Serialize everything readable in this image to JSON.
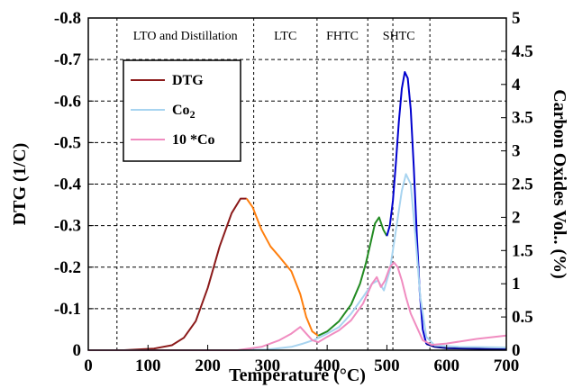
{
  "chart_data": {
    "type": "line",
    "xlabel": "Temperature (°C)",
    "ylabel": "DTG (1/C)",
    "y2label": "Carbon Oxides Vol.. (%)",
    "xlim": [
      0,
      700
    ],
    "ylim": [
      0,
      -0.8
    ],
    "y2lim": [
      0,
      5
    ],
    "x_ticks": [
      0,
      100,
      200,
      300,
      400,
      500,
      600,
      700
    ],
    "y_ticks": [
      "0",
      "-0.1",
      "-0.2",
      "-0.3",
      "-0.4",
      "-0.5",
      "-0.6",
      "-0.7",
      "-0.8"
    ],
    "y2_ticks": [
      "0",
      "0.5",
      "1",
      "1.5",
      "2",
      "2.5",
      "3",
      "3.5",
      "4",
      "4.5",
      "5"
    ],
    "grid": "horizontal dashed",
    "legend_position": "top-left",
    "legend": [
      {
        "label": "DTG",
        "sub": "",
        "color": "#8b1a1a"
      },
      {
        "label": "Co",
        "sub": "2",
        "color": "#a8d4f0"
      },
      {
        "label": "10 *Co",
        "sub": "",
        "color": "#f08cc0"
      }
    ],
    "regions": [
      {
        "label": "LTO and Distillation",
        "x_start": 48,
        "x_end": 277
      },
      {
        "label": "LTC",
        "x_start": 277,
        "x_end": 383
      },
      {
        "label": "FHTC",
        "x_start": 383,
        "x_end": 468
      },
      {
        "label": "SHTC",
        "x_start": 468,
        "x_end": 572
      }
    ],
    "region_lines_x": [
      48,
      277,
      383,
      468,
      510,
      572
    ],
    "series": [
      {
        "name": "DTG",
        "axis": "left",
        "segments": [
          {
            "color": "#8b1a1a",
            "x": [
              0,
              60,
              110,
              140,
              160,
              180,
              200,
              220,
              240,
              255,
              265
            ],
            "y": [
              0,
              0,
              -0.004,
              -0.012,
              -0.03,
              -0.07,
              -0.15,
              -0.25,
              -0.33,
              -0.365,
              -0.365
            ]
          },
          {
            "color": "#ff7f0e",
            "x": [
              265,
              275,
              290,
              305,
              320,
              340,
              355,
              365,
              375,
              385
            ],
            "y": [
              -0.365,
              -0.345,
              -0.29,
              -0.25,
              -0.225,
              -0.19,
              -0.135,
              -0.08,
              -0.045,
              -0.035
            ]
          },
          {
            "color": "#228b22",
            "x": [
              385,
              400,
              420,
              440,
              455,
              465,
              473,
              480,
              487,
              494,
              500
            ],
            "y": [
              -0.035,
              -0.045,
              -0.07,
              -0.11,
              -0.16,
              -0.21,
              -0.26,
              -0.305,
              -0.32,
              -0.29,
              -0.275
            ]
          },
          {
            "color": "#0000cd",
            "x": [
              500,
              505,
              510,
              515,
              520,
              525,
              530,
              535,
              540,
              545,
              550,
              555,
              560,
              566
            ],
            "y": [
              -0.275,
              -0.3,
              -0.36,
              -0.45,
              -0.55,
              -0.63,
              -0.67,
              -0.655,
              -0.58,
              -0.44,
              -0.28,
              -0.14,
              -0.05,
              -0.015
            ]
          },
          {
            "color": "#00008b",
            "x": [
              566,
              580,
              600,
              700
            ],
            "y": [
              -0.015,
              -0.008,
              -0.005,
              -0.002
            ]
          }
        ]
      },
      {
        "name": "Co2",
        "axis": "right",
        "color": "#a8d4f0",
        "x": [
          0,
          250,
          300,
          340,
          360,
          380,
          400,
          420,
          440,
          460,
          475,
          485,
          495,
          505,
          515,
          525,
          532,
          540,
          548,
          556,
          566,
          580,
          620,
          700
        ],
        "y": [
          0,
          0,
          0.01,
          0.05,
          0.1,
          0.16,
          0.25,
          0.35,
          0.55,
          0.8,
          1.0,
          1.05,
          0.9,
          1.2,
          1.8,
          2.4,
          2.65,
          2.5,
          1.7,
          0.8,
          0.2,
          0.07,
          0.05,
          0.04
        ]
      },
      {
        "name": "10 *Co",
        "axis": "right",
        "color": "#f08cc0",
        "x": [
          0,
          250,
          290,
          320,
          340,
          355,
          365,
          375,
          385,
          400,
          420,
          440,
          460,
          475,
          483,
          490,
          497,
          505,
          512,
          518,
          525,
          532,
          540,
          550,
          560,
          575,
          600,
          650,
          700
        ],
        "y": [
          0,
          0,
          0.05,
          0.15,
          0.25,
          0.35,
          0.25,
          0.15,
          0.12,
          0.2,
          0.3,
          0.45,
          0.7,
          1.0,
          1.1,
          0.95,
          1.05,
          1.25,
          1.32,
          1.25,
          1.05,
          0.8,
          0.55,
          0.35,
          0.15,
          0.08,
          0.1,
          0.17,
          0.22
        ]
      }
    ]
  }
}
